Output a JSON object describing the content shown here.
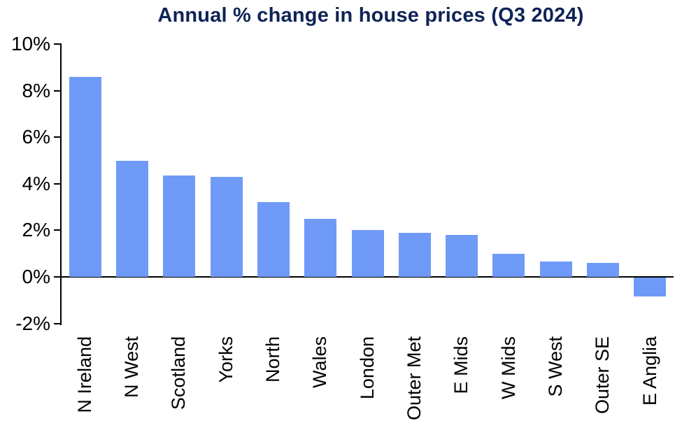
{
  "title": "Annual % change in house prices (Q3 2024)",
  "colors": {
    "bar": "#6F9AF8",
    "title": "#0E2356",
    "axis": "#000000",
    "text": "#000000",
    "background": "#FFFFFF"
  },
  "chart_data": {
    "type": "bar",
    "title": "Annual % change in house prices (Q3 2024)",
    "categories": [
      "N Ireland",
      "N West",
      "Scotland",
      "Yorks",
      "North",
      "Wales",
      "London",
      "Outer Met",
      "E Mids",
      "W Mids",
      "S West",
      "Outer SE",
      "E Anglia"
    ],
    "values": [
      8.6,
      5.0,
      4.35,
      4.3,
      3.2,
      2.5,
      2.0,
      1.9,
      1.8,
      1.0,
      0.65,
      0.6,
      -0.8
    ],
    "xlabel": "",
    "ylabel": "",
    "ylim": [
      -2,
      10
    ],
    "yticks": {
      "labels": [
        "10%",
        "8%",
        "6%",
        "4%",
        "2%",
        "0%",
        "-2%"
      ],
      "values": [
        10,
        8,
        6,
        4,
        2,
        0,
        -2
      ]
    },
    "grid": false,
    "legend": "none"
  }
}
